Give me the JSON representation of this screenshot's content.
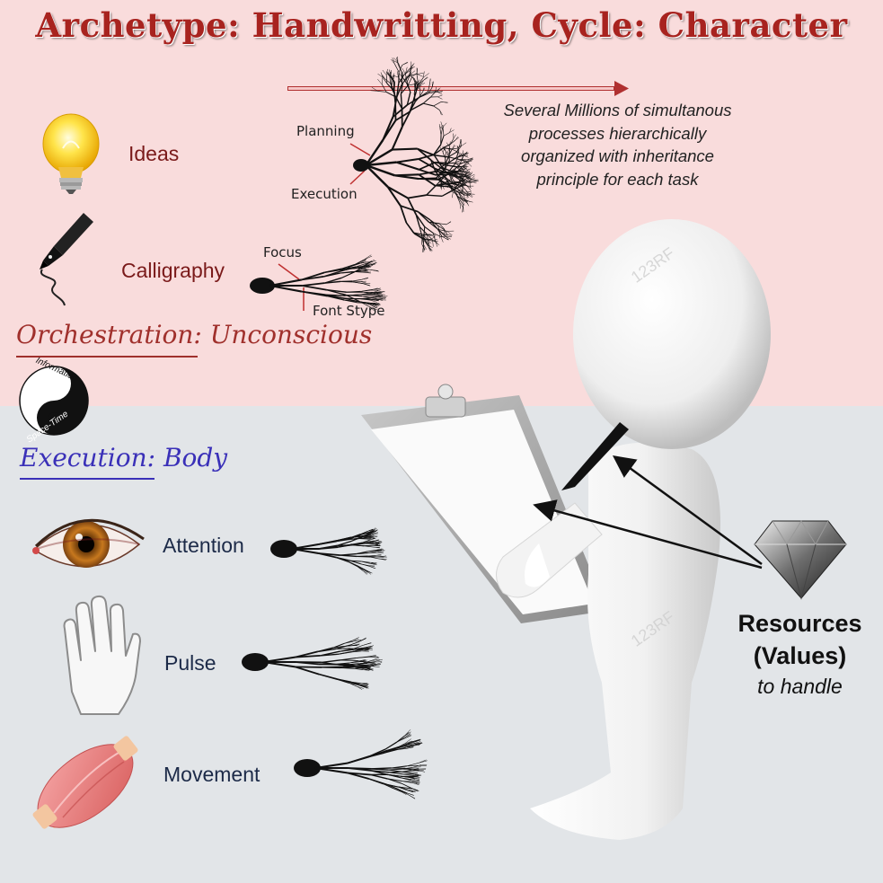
{
  "title": "Archetype: Handwritting, Cycle: Character",
  "top": {
    "ideas_label": "Ideas",
    "calligraphy_label": "Calligraphy",
    "planning_label": "Planning",
    "execution_label": "Execution",
    "focus_label": "Focus",
    "font_stype_label": "Font Stype",
    "description": "Several Millions of simultanous processes hierarchically organized with  inheritance principle for each task"
  },
  "sections": {
    "orchestration": "Orchestration: Unconscious",
    "execution": "Execution: Body"
  },
  "yin_yang": {
    "top_text": "Information",
    "bottom_text": "Space-Time"
  },
  "bottom": {
    "attention_label": "Attention",
    "pulse_label": "Pulse",
    "movement_label": "Movement"
  },
  "resources": {
    "line1": "Resources",
    "line2": "(Values)",
    "line3": "to handle"
  },
  "watermark": "123RF",
  "colors": {
    "top_bg": "#f9dcdc",
    "bottom_bg": "#e2e5e8",
    "title": "#a8231f",
    "orchestration": "#a0302c",
    "execution": "#3a30b8"
  },
  "icons": [
    "lightbulb-icon",
    "fountain-pen-icon",
    "yin-yang-icon",
    "eye-icon",
    "hand-icon",
    "muscle-icon",
    "diamond-icon",
    "neuron-icon",
    "clipboard-icon",
    "figure-icon"
  ]
}
